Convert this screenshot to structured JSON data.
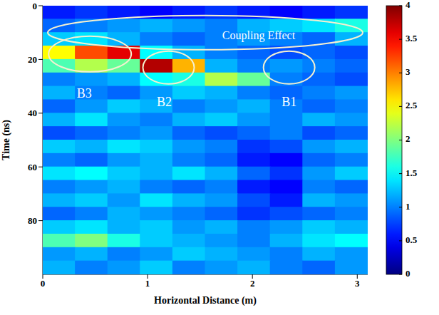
{
  "chart_data": {
    "type": "heatmap",
    "x_label": "Horizontal Distance (m)",
    "y_label": "Time (ns)",
    "xlim": [
      0,
      3.1
    ],
    "xticks": [
      0,
      1,
      2,
      3
    ],
    "ylim": [
      0,
      100
    ],
    "yticks": [
      0,
      20,
      40,
      60,
      80
    ],
    "x": [
      0.155,
      0.465,
      0.775,
      1.085,
      1.395,
      1.705,
      2.015,
      2.325,
      2.635,
      2.945
    ],
    "y": [
      2.5,
      7.5,
      12.5,
      17.5,
      22.5,
      27.5,
      32.5,
      37.5,
      42.5,
      47.5,
      52.5,
      57.5,
      62.5,
      67.5,
      72.5,
      77.5,
      82.5,
      87.5,
      92.5,
      97.5
    ],
    "cells": [
      [
        0.6,
        0.7,
        0.6,
        0.5,
        0.6,
        0.7,
        0.6,
        0.5,
        0.6,
        0.7
      ],
      [
        0.9,
        1.0,
        1.1,
        1.2,
        1.1,
        1.0,
        1.2,
        1.3,
        1.4,
        1.6
      ],
      [
        1.3,
        1.4,
        1.2,
        1.0,
        0.9,
        1.0,
        1.1,
        1.0,
        0.9,
        1.2
      ],
      [
        2.5,
        3.2,
        3.6,
        1.5,
        1.2,
        1.0,
        0.9,
        0.8,
        0.9,
        0.8
      ],
      [
        1.8,
        2.2,
        1.9,
        3.8,
        2.8,
        1.2,
        1.0,
        1.1,
        1.0,
        0.9
      ],
      [
        1.0,
        1.1,
        1.2,
        1.5,
        1.6,
        2.2,
        1.9,
        1.0,
        0.9,
        0.8
      ],
      [
        1.2,
        1.0,
        0.9,
        1.1,
        1.3,
        1.2,
        1.0,
        0.9,
        1.0,
        1.1
      ],
      [
        0.9,
        1.1,
        1.3,
        1.2,
        1.0,
        1.1,
        1.2,
        1.0,
        0.9,
        1.0
      ],
      [
        1.2,
        1.4,
        1.1,
        1.0,
        1.2,
        1.3,
        1.1,
        1.0,
        1.2,
        1.1
      ],
      [
        0.8,
        0.9,
        1.0,
        1.1,
        0.9,
        0.8,
        0.9,
        1.0,
        0.8,
        0.9
      ],
      [
        1.3,
        1.2,
        1.4,
        1.3,
        1.1,
        1.0,
        0.7,
        0.8,
        1.1,
        1.2
      ],
      [
        1.0,
        0.9,
        1.1,
        1.2,
        1.0,
        0.9,
        0.6,
        0.5,
        0.9,
        1.0
      ],
      [
        1.4,
        1.5,
        1.3,
        1.2,
        1.4,
        1.2,
        0.9,
        0.7,
        1.1,
        1.3
      ],
      [
        1.0,
        1.1,
        1.2,
        1.0,
        0.9,
        1.0,
        0.6,
        0.5,
        1.0,
        0.9
      ],
      [
        1.2,
        1.3,
        1.1,
        1.4,
        1.2,
        1.1,
        0.8,
        0.6,
        1.2,
        1.1
      ],
      [
        0.9,
        1.0,
        1.2,
        1.1,
        1.0,
        0.9,
        0.7,
        0.8,
        0.9,
        1.0
      ],
      [
        1.3,
        1.4,
        1.2,
        1.3,
        1.1,
        1.2,
        1.0,
        1.1,
        1.3,
        1.2
      ],
      [
        1.8,
        2.0,
        1.6,
        1.3,
        1.2,
        1.1,
        1.0,
        1.2,
        1.4,
        1.5
      ],
      [
        1.1,
        1.2,
        1.0,
        1.1,
        1.3,
        1.2,
        1.1,
        1.0,
        1.2,
        1.1
      ],
      [
        1.2,
        1.0,
        1.1,
        1.3,
        1.0,
        1.1,
        1.2,
        1.0,
        0.9,
        1.1
      ]
    ],
    "colorbar": {
      "range": [
        0,
        4
      ],
      "ticks": [
        0,
        0.5,
        1,
        1.5,
        2,
        2.5,
        3,
        3.5,
        4
      ]
    },
    "annotations": [
      {
        "text": "Coupling Effect"
      },
      {
        "text": "B3"
      },
      {
        "text": "B2"
      },
      {
        "text": "B1"
      }
    ]
  }
}
